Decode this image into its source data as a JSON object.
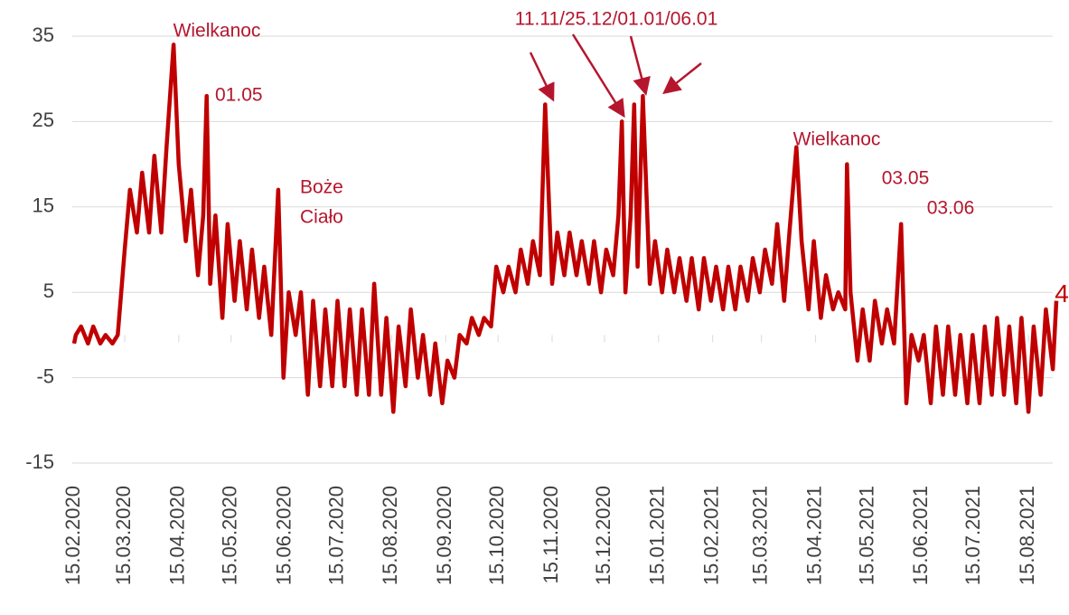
{
  "chart_data": {
    "type": "line",
    "annotations": [
      "Wielkanoc",
      "01.05",
      "Boże",
      "Ciało",
      "11.11/25.12/01.01/06.01",
      "Wielkanoc",
      "03.05",
      "03.06"
    ],
    "x": [
      "15.02.2020",
      "16.02.2020",
      "19.02.2020",
      "23.02.2020",
      "26.02.2020",
      "01.03.2020",
      "04.03.2020",
      "08.03.2020",
      "11.03.2020",
      "15.03.2020",
      "18.03.2020",
      "22.03.2020",
      "25.03.2020",
      "29.03.2020",
      "01.04.2020",
      "05.04.2020",
      "08.04.2020",
      "12.04.2020",
      "15.04.2020",
      "19.04.2020",
      "22.04.2020",
      "26.04.2020",
      "29.04.2020",
      "01.05.2020",
      "03.05.2020",
      "06.05.2020",
      "10.05.2020",
      "13.05.2020",
      "17.05.2020",
      "20.05.2020",
      "24.05.2020",
      "27.05.2020",
      "31.05.2020",
      "03.06.2020",
      "07.06.2020",
      "11.06.2020",
      "14.06.2020",
      "17.06.2020",
      "21.06.2020",
      "24.06.2020",
      "28.06.2020",
      "01.07.2020",
      "05.07.2020",
      "08.07.2020",
      "12.07.2020",
      "15.07.2020",
      "19.07.2020",
      "22.07.2020",
      "26.07.2020",
      "29.07.2020",
      "02.08.2020",
      "05.08.2020",
      "09.08.2020",
      "12.08.2020",
      "16.08.2020",
      "19.08.2020",
      "23.08.2020",
      "26.08.2020",
      "30.08.2020",
      "02.09.2020",
      "06.09.2020",
      "09.09.2020",
      "13.09.2020",
      "16.09.2020",
      "20.09.2020",
      "23.09.2020",
      "27.09.2020",
      "30.09.2020",
      "04.10.2020",
      "07.10.2020",
      "11.10.2020",
      "14.10.2020",
      "18.10.2020",
      "21.10.2020",
      "25.10.2020",
      "28.10.2020",
      "01.11.2020",
      "04.11.2020",
      "08.11.2020",
      "11.11.2020",
      "15.11.2020",
      "18.11.2020",
      "22.11.2020",
      "25.11.2020",
      "29.11.2020",
      "02.12.2020",
      "06.12.2020",
      "09.12.2020",
      "13.12.2020",
      "16.12.2020",
      "20.12.2020",
      "23.12.2020",
      "25.12.2020",
      "27.12.2020",
      "30.12.2020",
      "01.01.2021",
      "03.01.2021",
      "06.01.2021",
      "10.01.2021",
      "13.01.2021",
      "17.01.2021",
      "20.01.2021",
      "24.01.2021",
      "27.01.2021",
      "31.01.2021",
      "03.02.2021",
      "07.02.2021",
      "10.02.2021",
      "14.02.2021",
      "17.02.2021",
      "21.02.2021",
      "24.02.2021",
      "28.02.2021",
      "03.03.2021",
      "07.03.2021",
      "10.03.2021",
      "14.03.2021",
      "17.03.2021",
      "21.03.2021",
      "24.03.2021",
      "28.03.2021",
      "31.03.2021",
      "04.04.2021",
      "07.04.2021",
      "11.04.2021",
      "14.04.2021",
      "18.04.2021",
      "21.04.2021",
      "25.04.2021",
      "28.04.2021",
      "02.05.2021",
      "03.05.2021",
      "05.05.2021",
      "09.05.2021",
      "12.05.2021",
      "16.05.2021",
      "19.05.2021",
      "23.05.2021",
      "26.05.2021",
      "30.05.2021",
      "03.06.2021",
      "06.06.2021",
      "09.06.2021",
      "13.06.2021",
      "16.06.2021",
      "20.06.2021",
      "23.06.2021",
      "27.06.2021",
      "30.06.2021",
      "04.07.2021",
      "07.07.2021",
      "11.07.2021",
      "14.07.2021",
      "18.07.2021",
      "21.07.2021",
      "25.07.2021",
      "28.07.2021",
      "01.08.2021",
      "04.08.2021",
      "08.08.2021",
      "11.08.2021",
      "15.08.2021",
      "18.08.2021",
      "22.08.2021",
      "25.08.2021",
      "29.08.2021",
      "31.08.2021"
    ],
    "values": [
      -1,
      0,
      1,
      -1,
      1,
      -1,
      0,
      -1,
      0,
      10,
      17,
      12,
      19,
      12,
      21,
      12,
      22,
      34,
      20,
      11,
      17,
      7,
      14,
      28,
      6,
      14,
      2,
      13,
      4,
      11,
      3,
      10,
      2,
      8,
      0,
      17,
      -5,
      5,
      0,
      5,
      -7,
      4,
      -6,
      3,
      -6,
      4,
      -6,
      3,
      -7,
      3,
      -7,
      6,
      -7,
      2,
      -9,
      1,
      -6,
      3,
      -5,
      0,
      -7,
      -1,
      -8,
      -3,
      -5,
      0,
      -1,
      2,
      0,
      2,
      1,
      8,
      5,
      8,
      5,
      10,
      6,
      11,
      7,
      27,
      6,
      12,
      7,
      12,
      7,
      11,
      6,
      11,
      5,
      10,
      7,
      14,
      25,
      5,
      14,
      27,
      8,
      28,
      6,
      11,
      5,
      10,
      5,
      9,
      4,
      9,
      3,
      9,
      4,
      8,
      3,
      8,
      3,
      8,
      4,
      9,
      5,
      10,
      6,
      13,
      4,
      12,
      22,
      11,
      3,
      11,
      2,
      7,
      3,
      5,
      3,
      20,
      5,
      -3,
      3,
      -3,
      4,
      -1,
      3,
      -1,
      13,
      -8,
      0,
      -3,
      0,
      -8,
      1,
      -7,
      1,
      -7,
      0,
      -8,
      0,
      -8,
      1,
      -7,
      2,
      -7,
      1,
      -8,
      2,
      -9,
      1,
      -7,
      3,
      -4,
      4
    ],
    "color": "#c00000",
    "xlim": [
      "15.02.2020",
      "31.08.2021"
    ],
    "xticks": [
      "15.02.2020",
      "15.03.2020",
      "15.04.2020",
      "15.05.2020",
      "15.06.2020",
      "15.07.2020",
      "15.08.2020",
      "15.09.2020",
      "15.10.2020",
      "15.11.2020",
      "15.12.2020",
      "15.01.2021",
      "15.02.2021",
      "15.03.2021",
      "15.04.2021",
      "15.05.2021",
      "15.06.2021",
      "15.07.2021",
      "15.08.2021"
    ],
    "ylim": [
      -15,
      35
    ],
    "yticks": [
      35,
      25,
      15,
      5,
      -5,
      -15
    ],
    "grid": true
  }
}
